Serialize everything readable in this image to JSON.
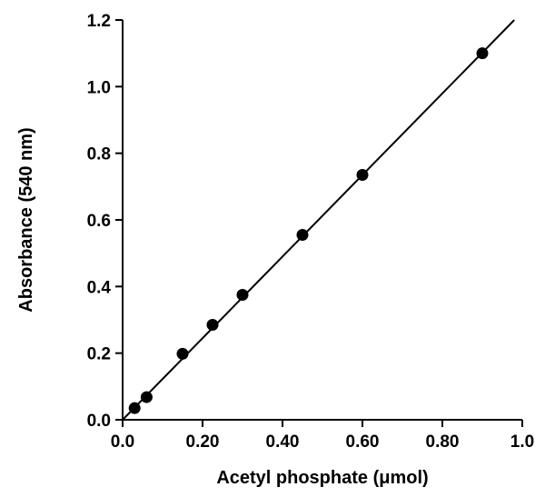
{
  "chart_data": {
    "type": "scatter",
    "xlabel": "Acetyl phosphate (μmol)",
    "ylabel": "Absorbance (540 nm)",
    "xlim": [
      0,
      1.0
    ],
    "ylim": [
      0,
      1.2
    ],
    "x_ticks": [
      0.0,
      0.2,
      0.4,
      0.6,
      0.8,
      1.0
    ],
    "x_tick_labels": [
      "0.0",
      "0.20",
      "0.40",
      "0.60",
      "0.80",
      "1.0"
    ],
    "y_ticks": [
      0.0,
      0.2,
      0.4,
      0.6,
      0.8,
      1.0,
      1.2
    ],
    "y_tick_labels": [
      "0.0",
      "0.2",
      "0.4",
      "0.6",
      "0.8",
      "1.0",
      "1.2"
    ],
    "grid": false,
    "series": [
      {
        "x": [
          0.03,
          0.06,
          0.15,
          0.225,
          0.3,
          0.45,
          0.6,
          0.9
        ],
        "y": [
          0.035,
          0.068,
          0.198,
          0.285,
          0.375,
          0.555,
          0.735,
          1.1
        ]
      }
    ],
    "fit_line": {
      "x": [
        0.0,
        0.98
      ],
      "y": [
        0.0,
        1.2
      ]
    },
    "colors": {
      "marker": "#000000",
      "line": "#000000",
      "axes": "#000000"
    }
  }
}
